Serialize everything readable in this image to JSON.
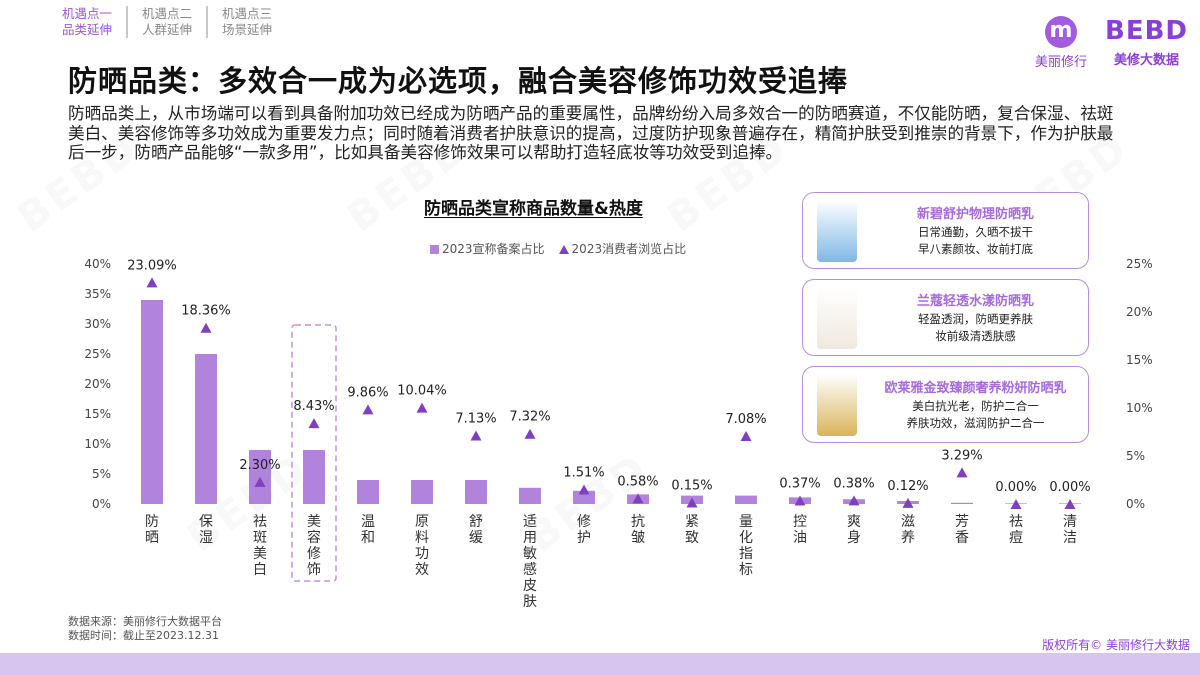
{
  "nav": [
    {
      "line1": "机遇点一",
      "line2": "品类延伸",
      "active": true
    },
    {
      "line1": "机遇点二",
      "line2": "人群延伸",
      "active": false
    },
    {
      "line1": "机遇点三",
      "line2": "场景延伸",
      "active": false
    }
  ],
  "brand": {
    "logo_letter": "m",
    "logo_caption": "美丽修行",
    "wordmark": "BEBD",
    "wordmark_caption": "美修大数据"
  },
  "title": "防晒品类：多效合一成为必选项，融合美容修饰功效受追捧",
  "description": "防晒品类上，从市场端可以看到具备附加功效已经成为防晒产品的重要属性，品牌纷纷入局多效合一的防晒赛道，不仅能防晒，复合保湿、祛斑美白、美容修饰等多功效成为重要发力点；同时随着消费者护肤意识的提高，过度防护现象普遍存在，精简护肤受到推崇的背景下，作为护肤最后一步，防晒产品能够“一款多用”，比如具备美容修饰效果可以帮助打造轻底妆等功效受到追捧。",
  "chart_data": {
    "type": "bar",
    "title": "防晒品类宣称商品数量&热度",
    "categories": [
      "防晒",
      "保湿",
      "祛斑美白",
      "美容修饰",
      "温和",
      "原料功效",
      "舒缓",
      "适用敏感皮肤",
      "修护",
      "抗皱",
      "紧致",
      "量化指标",
      "控油",
      "爽身",
      "滋养",
      "芳香",
      "祛痘",
      "清洁"
    ],
    "highlight_category": "美容修饰",
    "series": [
      {
        "name": "2023宣称备案占比",
        "kind": "bar",
        "axis": "left",
        "color": "#b183dc",
        "values": [
          34,
          25,
          9,
          9,
          4,
          4,
          4,
          2.7,
          2.2,
          1.6,
          1.4,
          1.4,
          1.1,
          0.8,
          0.5,
          0.2,
          0.1,
          0.1
        ]
      },
      {
        "name": "2023消费者浏览占比",
        "kind": "marker",
        "axis": "right",
        "color": "#7f3fbf",
        "values": [
          23.09,
          18.36,
          2.3,
          8.43,
          9.86,
          10.04,
          7.13,
          7.32,
          1.51,
          0.58,
          0.15,
          7.08,
          0.37,
          0.38,
          0.12,
          3.29,
          0.0,
          0.0
        ],
        "labels": [
          "23.09%",
          "18.36%",
          "2.30%",
          "8.43%",
          "9.86%",
          "10.04%",
          "7.13%",
          "7.32%",
          "1.51%",
          "0.58%",
          "0.15%",
          "7.08%",
          "0.37%",
          "0.38%",
          "0.12%",
          "3.29%",
          "0.00%",
          "0.00%"
        ]
      }
    ],
    "y_left": {
      "min": 0,
      "max": 40,
      "ticks": [
        "0%",
        "5%",
        "10%",
        "15%",
        "20%",
        "25%",
        "30%",
        "35%",
        "40%"
      ]
    },
    "y_right": {
      "min": 0,
      "max": 25,
      "ticks": [
        "0%",
        "5%",
        "10%",
        "15%",
        "20%",
        "25%"
      ]
    },
    "grid": false,
    "legend": "top"
  },
  "cards": [
    {
      "title": "新碧舒护物理防晒乳",
      "lines": [
        "日常通勤，久晒不拔干",
        "早八素颜妆、妆前打底"
      ],
      "thumb_color": "#7fb8e6"
    },
    {
      "title": "兰蔻轻透水漾防晒乳",
      "lines": [
        "轻盈透润，防晒更养肤",
        "妆前级清透肤感"
      ],
      "thumb_color": "#efe8de"
    },
    {
      "title": "欧莱雅金致臻颜奢养粉妍防晒乳",
      "lines": [
        "美白抗光老，防护二合一",
        "养肤功效，滋润防护二合一"
      ],
      "thumb_color": "#d9b45a"
    }
  ],
  "source": {
    "line1": "数据来源：美丽修行大数据平台",
    "line2": "数据时间：截止至2023.12.31"
  },
  "copyright": "版权所有© 美丽修行大数据"
}
